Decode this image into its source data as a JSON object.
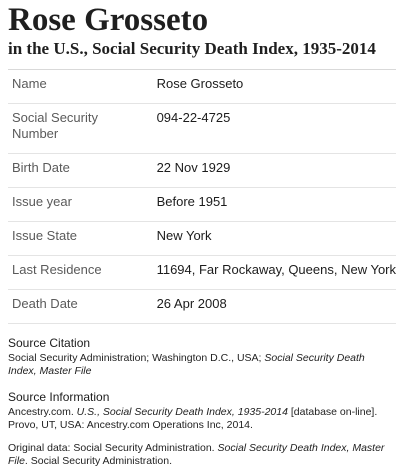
{
  "record": {
    "name": "Rose Grosseto",
    "collection": "in the U.S., Social Security Death Index, 1935-2014"
  },
  "fields": [
    {
      "label": "Name",
      "value": "Rose Grosseto"
    },
    {
      "label": "Social Security Number",
      "value": "094-22-4725"
    },
    {
      "label": "Birth Date",
      "value": "22 Nov 1929"
    },
    {
      "label": "Issue year",
      "value": "Before 1951"
    },
    {
      "label": "Issue State",
      "value": "New York"
    },
    {
      "label": "Last Residence",
      "value": "11694, Far Rockaway, Queens, New York"
    },
    {
      "label": "Death Date",
      "value": "26 Apr 2008"
    }
  ],
  "source_citation": {
    "heading": "Source Citation",
    "text_plain": "Social Security Administration; Washington D.C., USA; ",
    "text_italic": "Social Security Death Index, Master File"
  },
  "source_information": {
    "heading": "Source Information",
    "line1_a": "Ancestry.com. ",
    "line1_italic": "U.S., Social Security Death Index, 1935-2014",
    "line1_b": " [database on-line]. Provo, UT, USA: Ancestry.com Operations Inc, 2014.",
    "line2_a": "Original data: Social Security Administration. ",
    "line2_italic": "Social Security Death Index, Master File",
    "line2_b": ". Social Security Administration."
  }
}
